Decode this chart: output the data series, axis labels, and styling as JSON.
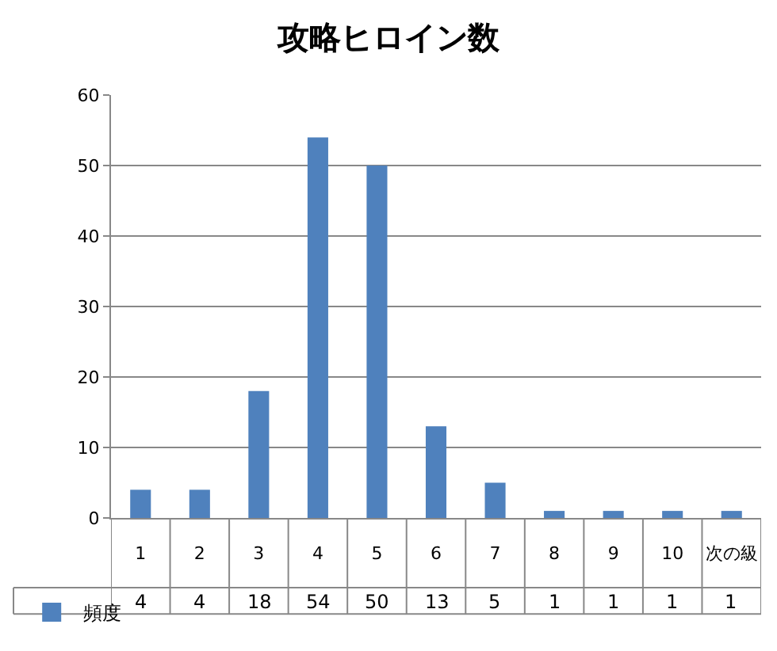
{
  "chart_data": {
    "type": "bar",
    "title": "攻略ヒロイン数",
    "categories": [
      "1",
      "2",
      "3",
      "4",
      "5",
      "6",
      "7",
      "8",
      "9",
      "10",
      "次の級"
    ],
    "series": [
      {
        "name": "頻度",
        "color": "#4f81bd",
        "values": [
          4,
          4,
          18,
          54,
          50,
          13,
          5,
          1,
          1,
          1,
          1
        ]
      }
    ],
    "ylim": [
      0,
      60
    ],
    "yticks": [
      0,
      10,
      20,
      30,
      40,
      50,
      60
    ],
    "grid": "y",
    "legend": "bottom left",
    "data_labels": true
  }
}
